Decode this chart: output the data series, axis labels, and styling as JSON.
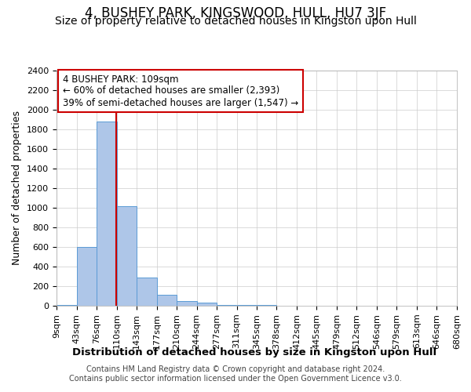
{
  "title": "4, BUSHEY PARK, KINGSWOOD, HULL, HU7 3JF",
  "subtitle": "Size of property relative to detached houses in Kingston upon Hull",
  "xlabel": "Distribution of detached houses by size in Kingston upon Hull",
  "ylabel": "Number of detached properties",
  "footer_line1": "Contains HM Land Registry data © Crown copyright and database right 2024.",
  "footer_line2": "Contains public sector information licensed under the Open Government Licence v3.0.",
  "annotation_title": "4 BUSHEY PARK: 109sqm",
  "annotation_line2": "← 60% of detached houses are smaller (2,393)",
  "annotation_line3": "39% of semi-detached houses are larger (1,547) →",
  "bar_left_edges": [
    9,
    43,
    76,
    110,
    143,
    177,
    210,
    244,
    277,
    311,
    345,
    378,
    412,
    445,
    479,
    512,
    546,
    579,
    613,
    646
  ],
  "bar_widths": [
    34,
    33,
    34,
    33,
    34,
    33,
    34,
    33,
    33,
    34,
    33,
    34,
    33,
    34,
    33,
    34,
    33,
    34,
    33,
    34
  ],
  "bar_heights": [
    10,
    600,
    1880,
    1020,
    290,
    110,
    50,
    30,
    10,
    5,
    5,
    3,
    2,
    2,
    1,
    1,
    1,
    0,
    0,
    0
  ],
  "bar_color": "#aec6e8",
  "bar_edge_color": "#5b9bd5",
  "vline_color": "#cc0000",
  "vline_x": 109,
  "ylim": [
    0,
    2400
  ],
  "yticks": [
    0,
    200,
    400,
    600,
    800,
    1000,
    1200,
    1400,
    1600,
    1800,
    2000,
    2200,
    2400
  ],
  "xtick_labels": [
    "9sqm",
    "43sqm",
    "76sqm",
    "110sqm",
    "143sqm",
    "177sqm",
    "210sqm",
    "244sqm",
    "277sqm",
    "311sqm",
    "345sqm",
    "378sqm",
    "412sqm",
    "445sqm",
    "479sqm",
    "512sqm",
    "546sqm",
    "579sqm",
    "613sqm",
    "646sqm",
    "680sqm"
  ],
  "grid_color": "#cccccc",
  "background_color": "#ffffff",
  "annotation_box_color": "#ffffff",
  "annotation_box_edge": "#cc0000",
  "title_fontsize": 12,
  "subtitle_fontsize": 10,
  "axis_label_fontsize": 9,
  "tick_fontsize": 8,
  "annotation_fontsize": 8.5,
  "footer_fontsize": 7
}
